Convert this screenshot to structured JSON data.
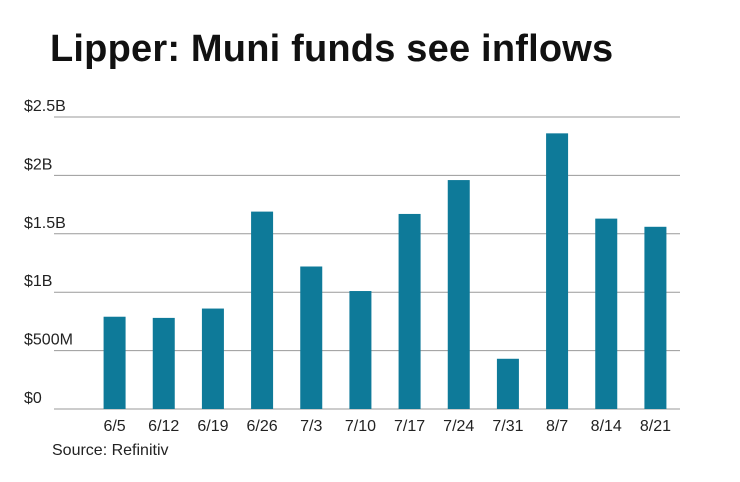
{
  "chart_data": {
    "type": "bar",
    "title": "Lipper: Muni funds see inflows",
    "xlabel": "",
    "ylabel": "",
    "categories": [
      "6/5",
      "6/12",
      "6/19",
      "6/26",
      "7/3",
      "7/10",
      "7/17",
      "7/24",
      "7/31",
      "8/7",
      "8/14",
      "8/21"
    ],
    "values": [
      0.79,
      0.78,
      0.86,
      1.69,
      1.22,
      1.01,
      1.67,
      1.96,
      0.43,
      2.36,
      1.63,
      1.56
    ],
    "units": "billions of dollars",
    "ylim": [
      0,
      2.5
    ],
    "yticks": [
      0,
      0.5,
      1,
      1.5,
      2,
      2.5
    ],
    "ytick_labels": [
      "$0",
      "$500M",
      "$1B",
      "$1.5B",
      "$2B",
      "$2.5B"
    ],
    "grid": true,
    "legend": "none",
    "bar_color": "#0e7a99",
    "gridline_color": "#9a9a9a"
  },
  "source": "Source: Refinitiv"
}
